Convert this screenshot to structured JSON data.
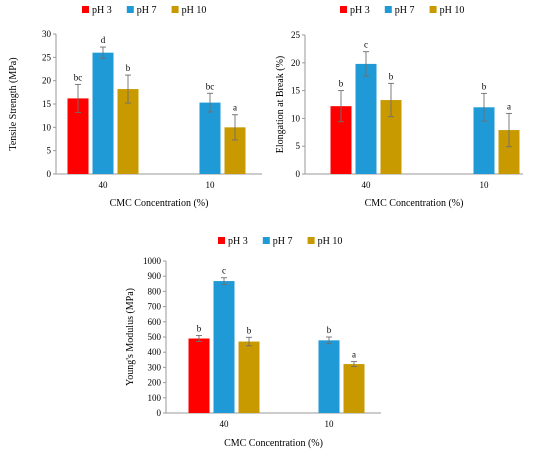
{
  "colors": {
    "pH 3": "#ff0000",
    "pH 7": "#1f9ad6",
    "pH 10": "#c89a00"
  },
  "chart_data": [
    {
      "type": "bar",
      "categories": [
        "40",
        "10"
      ],
      "xlabel": "CMC Concentration (%)",
      "ylabel": "Tensile Strength (MPa)",
      "ylim": [
        0,
        30
      ],
      "yticks": [
        0,
        5,
        10,
        15,
        20,
        25,
        30
      ],
      "grid": false,
      "legend_position": "top",
      "series": [
        {
          "name": "pH 3",
          "values": [
            16.2,
            null
          ],
          "errors": [
            3.0,
            null
          ],
          "labels": [
            "bc",
            ""
          ]
        },
        {
          "name": "pH 7",
          "values": [
            26.0,
            15.3
          ],
          "errors": [
            1.2,
            2.0
          ],
          "labels": [
            "d",
            "bc"
          ]
        },
        {
          "name": "pH 10",
          "values": [
            18.2,
            10.0
          ],
          "errors": [
            3.0,
            2.7
          ],
          "labels": [
            "b",
            "a"
          ]
        }
      ]
    },
    {
      "type": "bar",
      "categories": [
        "40",
        "10"
      ],
      "xlabel": "CMC Concentration (%)",
      "ylabel": "Elongation at Break (%)",
      "ylim": [
        0,
        25
      ],
      "yticks": [
        0,
        5,
        10,
        15,
        20,
        25
      ],
      "grid": false,
      "legend_position": "top",
      "series": [
        {
          "name": "pH 3",
          "values": [
            12.2,
            null
          ],
          "errors": [
            2.8,
            null
          ],
          "labels": [
            "b",
            ""
          ]
        },
        {
          "name": "pH 7",
          "values": [
            19.8,
            12.0
          ],
          "errors": [
            2.2,
            2.5
          ],
          "labels": [
            "c",
            "b"
          ]
        },
        {
          "name": "pH 10",
          "values": [
            13.3,
            7.9
          ],
          "errors": [
            3.0,
            3.0
          ],
          "labels": [
            "b",
            "a"
          ]
        }
      ]
    },
    {
      "type": "bar",
      "categories": [
        "40",
        "10"
      ],
      "xlabel": "CMC Concentration (%)",
      "ylabel": "Young's Modulus (MPa)",
      "ylim": [
        0,
        1000
      ],
      "yticks": [
        0,
        100,
        200,
        300,
        400,
        500,
        600,
        700,
        800,
        900,
        1000
      ],
      "grid": false,
      "legend_position": "top",
      "series": [
        {
          "name": "pH 3",
          "values": [
            490,
            null
          ],
          "errors": [
            20,
            null
          ],
          "labels": [
            "b",
            ""
          ]
        },
        {
          "name": "pH 7",
          "values": [
            868,
            478
          ],
          "errors": [
            22,
            22
          ],
          "labels": [
            "c",
            "b"
          ]
        },
        {
          "name": "pH 10",
          "values": [
            470,
            322
          ],
          "errors": [
            28,
            16
          ],
          "labels": [
            "b",
            "a"
          ]
        }
      ]
    }
  ]
}
